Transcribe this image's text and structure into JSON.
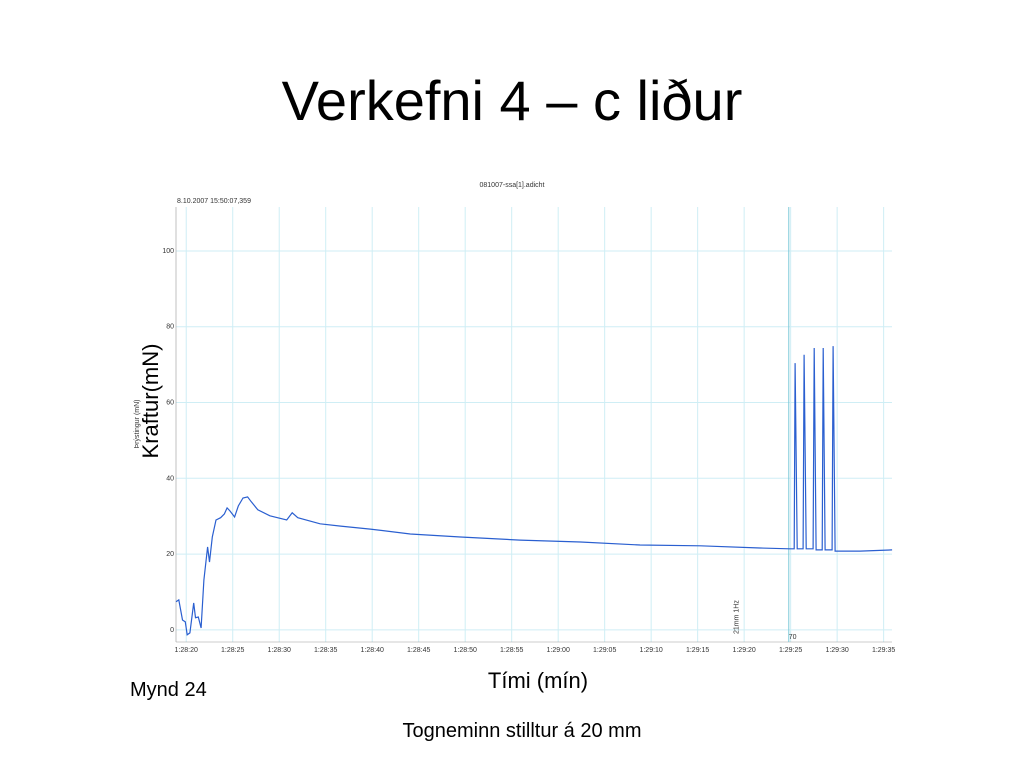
{
  "slide": {
    "title": "Verkefni 4 – c liður",
    "y_caption": "Kraftur(mN)",
    "x_caption": "Tími (mín)",
    "figure_label": "Mynd 24",
    "note": "Togneminn stilltur á 20 mm"
  },
  "chart_data": {
    "type": "line",
    "title": "081007-ssa[1].adicht",
    "subtitle": "8.10.2007 15:50:07,359",
    "ylabel": "Þrýstingur (mN)",
    "xlim": [
      5298.9,
      5375.9
    ],
    "ylim": [
      -3.2,
      111.6
    ],
    "grid": true,
    "xticks": [
      {
        "value": 5300,
        "label": "1:28:20"
      },
      {
        "value": 5305,
        "label": "1:28:25"
      },
      {
        "value": 5310,
        "label": "1:28:30"
      },
      {
        "value": 5315,
        "label": "1:28:35"
      },
      {
        "value": 5320,
        "label": "1:28:40"
      },
      {
        "value": 5325,
        "label": "1:28:45"
      },
      {
        "value": 5330,
        "label": "1:28:50"
      },
      {
        "value": 5335,
        "label": "1:28:55"
      },
      {
        "value": 5340,
        "label": "1:29:00"
      },
      {
        "value": 5345,
        "label": "1:29:05"
      },
      {
        "value": 5350,
        "label": "1:29:10"
      },
      {
        "value": 5355,
        "label": "1:29:15"
      },
      {
        "value": 5360,
        "label": "1:29:20"
      },
      {
        "value": 5365,
        "label": "1:29:25"
      },
      {
        "value": 5370,
        "label": "1:29:30"
      },
      {
        "value": 5375,
        "label": "1:29:35"
      }
    ],
    "yticks": [
      0,
      20,
      40,
      60,
      80,
      100
    ],
    "cursor": {
      "x": 5364.8,
      "label": "70"
    },
    "annotation": {
      "x": 5359.4,
      "text": "21mm 1Hz"
    },
    "series": [
      {
        "color": "#2a5fd0",
        "x": [
          5298.9,
          5299.2,
          5299.6,
          5299.9,
          5300.1,
          5300.4,
          5300.8,
          5301.0,
          5301.3,
          5301.6,
          5301.9,
          5302.3,
          5302.5,
          5302.8,
          5303.2,
          5303.7,
          5304.1,
          5304.4,
          5304.7,
          5305.2,
          5305.6,
          5306.1,
          5306.6,
          5307.0,
          5307.7,
          5309.0,
          5310.8,
          5311.4,
          5312.0,
          5314.4,
          5316.6,
          5319.8,
          5324.1,
          5329.5,
          5335.9,
          5342.4,
          5348.8,
          5355.3,
          5361.7,
          5364.9,
          5365.38,
          5365.48,
          5365.7,
          5366.34,
          5366.45,
          5366.67,
          5367.42,
          5367.53,
          5367.74,
          5368.39,
          5368.5,
          5368.71,
          5369.46,
          5369.57,
          5369.78,
          5372.47,
          5375.91
        ],
        "values": [
          7.4,
          7.9,
          2.6,
          2.1,
          -1.3,
          -0.8,
          7.1,
          3.2,
          3.4,
          0.5,
          13.2,
          21.9,
          17.9,
          24.5,
          29.0,
          29.6,
          30.6,
          32.2,
          31.4,
          29.8,
          32.7,
          34.8,
          35.1,
          33.8,
          31.7,
          30.1,
          29.0,
          30.9,
          29.6,
          28.0,
          27.4,
          26.6,
          25.3,
          24.5,
          23.7,
          23.2,
          22.4,
          22.2,
          21.6,
          21.4,
          21.4,
          70.4,
          21.4,
          21.4,
          72.6,
          21.4,
          21.4,
          74.4,
          21.1,
          21.1,
          74.4,
          21.1,
          21.1,
          74.9,
          20.8,
          20.8,
          21.1
        ]
      }
    ]
  }
}
